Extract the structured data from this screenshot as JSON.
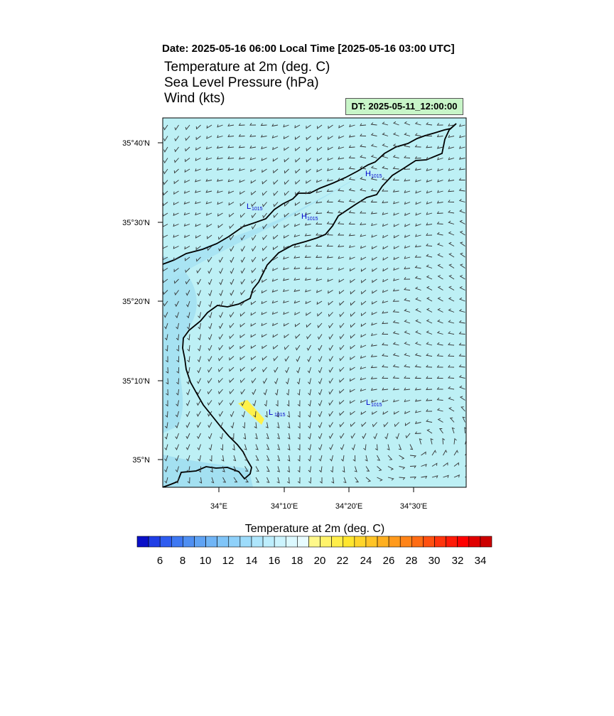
{
  "header": {
    "date_line": "Date: 2025-05-16  06:00 Local Time [2025-05-16  03:00 UTC]",
    "titles": [
      "Temperature at 2m   (deg. C)",
      "Sea Level Pressure   (hPa)",
      "Wind   (kts)"
    ],
    "dt_badge": "DT: 2025-05-11_12:00:00"
  },
  "map": {
    "lat_labels": [
      "35°40'N",
      "35°30'N",
      "35°20'N",
      "35°10'N",
      "35°N"
    ],
    "lon_labels": [
      "34°E",
      "34°10'E",
      "34°20'E",
      "34°30'E"
    ],
    "pressure_centers": [
      {
        "type": "H",
        "value": "1015"
      },
      {
        "type": "L",
        "value": "1015"
      },
      {
        "type": "H",
        "value": "1015"
      },
      {
        "type": "L",
        "value": "1015"
      },
      {
        "type": "L",
        "value": "1015"
      }
    ],
    "colors": {
      "sea": "#bdf0f5",
      "cool": "#9adcf0",
      "warm": "#fff14a",
      "coast": "#000000",
      "label": "#0000cc"
    }
  },
  "colorbar": {
    "title": "Temperature at 2m  (deg. C)",
    "tick_labels": [
      "6",
      "8",
      "10",
      "12",
      "14",
      "16",
      "18",
      "20",
      "22",
      "24",
      "26",
      "28",
      "30",
      "32",
      "34"
    ],
    "colors": [
      "#0a10c8",
      "#1f3ee6",
      "#2e5cf0",
      "#3e78f2",
      "#4f8ff2",
      "#5fa3f4",
      "#70b5f6",
      "#80c5f8",
      "#8fd1fa",
      "#9ddcfb",
      "#aee6fc",
      "#bdeefd",
      "#ccf4fe",
      "#dcf9ff",
      "#e8fcff",
      "#fff88a",
      "#fff36a",
      "#ffee4a",
      "#ffe62e",
      "#ffd52a",
      "#ffc426",
      "#ffb020",
      "#ff9a1c",
      "#ff8418",
      "#ff6c14",
      "#ff5010",
      "#ff340c",
      "#ff1a08",
      "#ff0000",
      "#e00000",
      "#cc0000"
    ]
  }
}
